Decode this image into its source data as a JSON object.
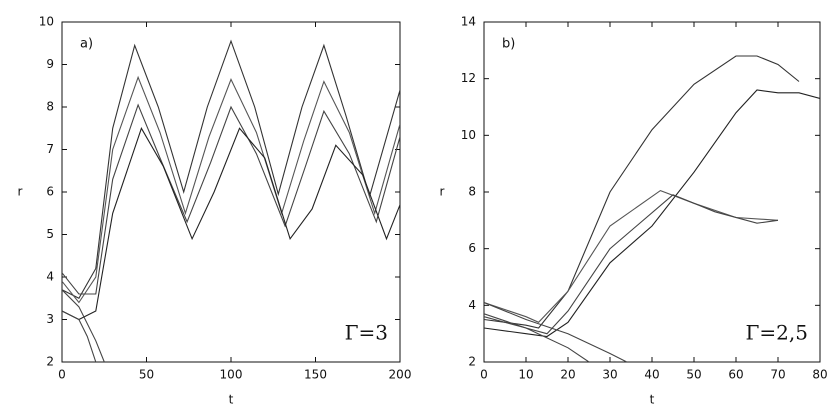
{
  "chart_data": [
    {
      "type": "line",
      "annotations": [
        "a)",
        "Γ=3"
      ],
      "xlabel": "t",
      "ylabel": "r",
      "xlim": [
        0,
        200
      ],
      "xticks": [
        0,
        50,
        100,
        150,
        200
      ],
      "ylim": [
        2,
        10
      ],
      "yticks": [
        2,
        3,
        4,
        5,
        6,
        7,
        8,
        9,
        10
      ],
      "series": [
        {
          "color": "#333333",
          "x": [
            0,
            10,
            20,
            30,
            43,
            57,
            72,
            86,
            100,
            114,
            128,
            142,
            155,
            168,
            182,
            200
          ],
          "values": [
            3.7,
            3.5,
            4.2,
            7.5,
            9.45,
            8.0,
            6.0,
            8.0,
            9.55,
            8.0,
            5.95,
            8.0,
            9.45,
            7.8,
            5.9,
            8.4
          ]
        },
        {
          "color": "#555555",
          "x": [
            0,
            10,
            20,
            30,
            45,
            58,
            73,
            87,
            100,
            115,
            130,
            143,
            155,
            170,
            185,
            200
          ],
          "values": [
            3.9,
            3.4,
            4.0,
            7.0,
            8.7,
            7.4,
            5.5,
            7.3,
            8.65,
            7.4,
            5.5,
            7.2,
            8.6,
            7.4,
            5.5,
            7.6
          ]
        },
        {
          "color": "#444444",
          "x": [
            0,
            10,
            20,
            30,
            45,
            58,
            74,
            88,
            100,
            115,
            132,
            144,
            155,
            170,
            186,
            200
          ],
          "values": [
            4.1,
            3.6,
            3.6,
            6.3,
            8.05,
            6.8,
            5.3,
            6.7,
            8.0,
            6.9,
            5.2,
            6.6,
            7.9,
            6.9,
            5.3,
            7.3
          ]
        },
        {
          "color": "#222222",
          "x": [
            0,
            10,
            20,
            30,
            47,
            60,
            77,
            90,
            105,
            120,
            135,
            148,
            162,
            178,
            192,
            200
          ],
          "values": [
            3.2,
            3.0,
            3.2,
            5.5,
            7.5,
            6.6,
            4.9,
            6.0,
            7.5,
            6.8,
            4.9,
            5.6,
            7.1,
            6.4,
            4.9,
            5.7
          ]
        },
        {
          "color": "#444444",
          "x": [
            0,
            10,
            20,
            25
          ],
          "values": [
            3.7,
            3.3,
            2.5,
            2.0
          ]
        },
        {
          "color": "#444444",
          "x": [
            0,
            10,
            15,
            20
          ],
          "values": [
            3.2,
            3.0,
            2.6,
            2.0
          ]
        }
      ]
    },
    {
      "type": "line",
      "annotations": [
        "b)",
        "Γ=2,5"
      ],
      "xlabel": "t",
      "ylabel": "r",
      "xlim": [
        0,
        80
      ],
      "xticks": [
        0,
        10,
        20,
        30,
        40,
        50,
        60,
        70,
        80
      ],
      "ylim": [
        2,
        14
      ],
      "yticks": [
        2,
        4,
        6,
        8,
        10,
        12,
        14
      ],
      "series": [
        {
          "color": "#333333",
          "x": [
            0,
            5,
            10,
            13,
            20,
            30,
            40,
            50,
            60,
            65,
            70,
            75
          ],
          "values": [
            3.5,
            3.4,
            3.3,
            3.2,
            4.5,
            8.0,
            10.2,
            11.8,
            12.8,
            12.8,
            12.5,
            11.9
          ]
        },
        {
          "color": "#222222",
          "x": [
            0,
            10,
            15,
            20,
            30,
            40,
            50,
            60,
            65,
            70,
            75,
            80
          ],
          "values": [
            3.2,
            3.0,
            2.9,
            3.4,
            5.5,
            6.8,
            8.7,
            10.8,
            11.6,
            11.5,
            11.5,
            11.3
          ]
        },
        {
          "color": "#555555",
          "x": [
            0,
            10,
            13,
            20,
            30,
            42,
            50,
            60,
            70
          ],
          "values": [
            4.1,
            3.6,
            3.4,
            4.5,
            6.8,
            8.05,
            7.6,
            7.1,
            7.0
          ]
        },
        {
          "color": "#444444",
          "x": [
            0,
            10,
            15,
            20,
            30,
            45,
            55,
            65,
            70
          ],
          "values": [
            3.7,
            3.2,
            3.0,
            3.8,
            6.0,
            7.9,
            7.3,
            6.9,
            7.0
          ]
        },
        {
          "color": "#444444",
          "x": [
            0,
            10,
            20,
            30,
            34
          ],
          "values": [
            4.1,
            3.5,
            3.0,
            2.3,
            2.0
          ]
        },
        {
          "color": "#444444",
          "x": [
            0,
            10,
            20,
            25
          ],
          "values": [
            3.6,
            3.2,
            2.5,
            2.0
          ]
        }
      ]
    }
  ]
}
